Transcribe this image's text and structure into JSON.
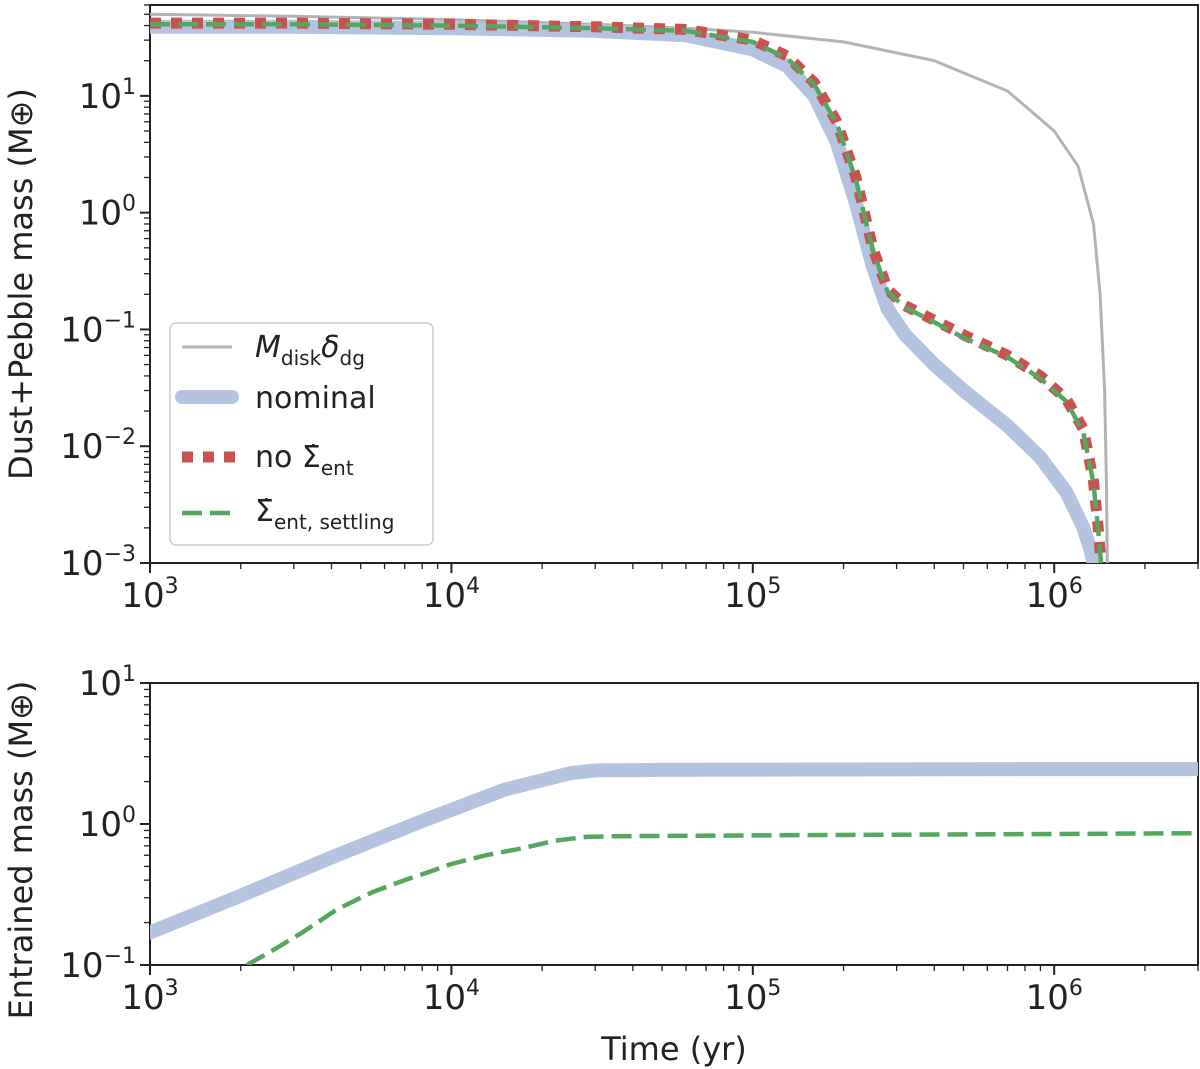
{
  "colors": {
    "disk": "#b3b3b3",
    "nominal": "#b3c3e0",
    "no_ent": "#cc5050",
    "settling": "#55a760",
    "axis": "#222222"
  },
  "chart_data": [
    {
      "type": "line",
      "panel": "top",
      "ylabel_prefix": "Dust+Pebble mass (M",
      "ylabel_suffix": ")",
      "xscale": "log",
      "yscale": "log",
      "xlim": [
        1000,
        3000000
      ],
      "ylim": [
        0.001,
        60
      ],
      "xticks": [
        {
          "base": "10",
          "exp": "3"
        },
        {
          "base": "10",
          "exp": "4"
        },
        {
          "base": "10",
          "exp": "5"
        },
        {
          "base": "10",
          "exp": "6"
        }
      ],
      "yticks": [
        {
          "base": "10",
          "exp": "1"
        },
        {
          "base": "10",
          "exp": "0"
        },
        {
          "base": "10",
          "exp": "−1"
        },
        {
          "base": "10",
          "exp": "−2"
        },
        {
          "base": "10",
          "exp": "−3"
        }
      ],
      "legend": {
        "placement": "lower-left",
        "entries": [
          {
            "key": "disk",
            "main": "M",
            "sub1": "disk",
            "mid": "δ",
            "sub2": "dg"
          },
          {
            "key": "nominal",
            "main": "nominal"
          },
          {
            "key": "no_ent",
            "main": "no Σ̇",
            "sub1": "ent"
          },
          {
            "key": "settling",
            "main": "Σ̇",
            "sub1": "ent, settling"
          }
        ]
      },
      "series": [
        {
          "key": "disk",
          "name": "M_disk δ_dg",
          "style": "solid-thin",
          "x": [
            1000,
            3000,
            10000,
            30000,
            60000,
            100000,
            200000,
            400000,
            700000,
            1000000,
            1200000,
            1350000,
            1420000,
            1470000,
            1490000,
            1500000
          ],
          "y": [
            50,
            48,
            45,
            41,
            38,
            35,
            29,
            20,
            11,
            5,
            2.5,
            0.8,
            0.2,
            0.03,
            0.005,
            0.001
          ]
        },
        {
          "key": "nominal",
          "name": "nominal",
          "style": "thick",
          "x": [
            1000,
            3000,
            10000,
            30000,
            60000,
            100000,
            130000,
            160000,
            190000,
            220000,
            250000,
            280000,
            320000,
            400000,
            500000,
            700000,
            900000,
            1100000,
            1250000,
            1320000,
            1350000
          ],
          "y": [
            39,
            39,
            38,
            36,
            33,
            25,
            18,
            10,
            4,
            1.2,
            0.35,
            0.15,
            0.09,
            0.05,
            0.03,
            0.015,
            0.008,
            0.004,
            0.002,
            0.0013,
            0.001
          ]
        },
        {
          "key": "no_ent",
          "name": "no Σ̇_ent",
          "style": "dotted",
          "x": [
            1000,
            3000,
            10000,
            30000,
            60000,
            100000,
            130000,
            160000,
            190000,
            220000,
            250000,
            280000,
            320000,
            400000,
            500000,
            700000,
            900000,
            1100000,
            1250000,
            1350000,
            1400000,
            1430000
          ],
          "y": [
            42,
            42,
            41,
            39,
            37,
            30,
            22,
            13,
            6,
            2,
            0.5,
            0.22,
            0.16,
            0.12,
            0.09,
            0.06,
            0.04,
            0.025,
            0.014,
            0.005,
            0.002,
            0.001
          ]
        },
        {
          "key": "settling",
          "name": "Σ̇_ent,settling",
          "style": "dashed",
          "x": [
            1000,
            3000,
            10000,
            30000,
            60000,
            100000,
            130000,
            160000,
            190000,
            220000,
            250000,
            280000,
            320000,
            400000,
            500000,
            700000,
            900000,
            1100000,
            1250000,
            1350000,
            1400000,
            1430000
          ],
          "y": [
            41,
            41,
            40,
            38,
            36,
            29,
            21,
            12.5,
            5.8,
            1.9,
            0.48,
            0.21,
            0.155,
            0.115,
            0.085,
            0.058,
            0.038,
            0.024,
            0.013,
            0.0048,
            0.0019,
            0.001
          ]
        }
      ]
    },
    {
      "type": "line",
      "panel": "bottom",
      "ylabel_prefix": "Entrained mass (M",
      "ylabel_suffix": ")",
      "xlabel": "Time (yr)",
      "xscale": "log",
      "yscale": "log",
      "xlim": [
        1000,
        3000000
      ],
      "ylim": [
        0.1,
        10
      ],
      "xticks": [
        {
          "base": "10",
          "exp": "3"
        },
        {
          "base": "10",
          "exp": "4"
        },
        {
          "base": "10",
          "exp": "5"
        },
        {
          "base": "10",
          "exp": "6"
        }
      ],
      "yticks": [
        {
          "base": "10",
          "exp": "1"
        },
        {
          "base": "10",
          "exp": "0"
        },
        {
          "base": "10",
          "exp": "−1"
        }
      ],
      "series": [
        {
          "key": "nominal",
          "name": "nominal",
          "style": "thick",
          "x": [
            1000,
            2000,
            4000,
            8000,
            15000,
            25000,
            30000,
            50000,
            100000,
            1000000,
            3000000
          ],
          "y": [
            0.17,
            0.31,
            0.58,
            1.05,
            1.75,
            2.3,
            2.4,
            2.42,
            2.43,
            2.45,
            2.45
          ]
        },
        {
          "key": "settling",
          "name": "Σ̇_ent,settling",
          "style": "dashed",
          "x": [
            2100,
            2600,
            3200,
            4200,
            5500,
            7000,
            8500,
            10000,
            13000,
            17000,
            22000,
            28000,
            35000,
            100000,
            1000000,
            3000000
          ],
          "y": [
            0.1,
            0.13,
            0.17,
            0.25,
            0.33,
            0.4,
            0.46,
            0.52,
            0.6,
            0.67,
            0.76,
            0.81,
            0.82,
            0.83,
            0.85,
            0.86
          ]
        }
      ]
    }
  ]
}
